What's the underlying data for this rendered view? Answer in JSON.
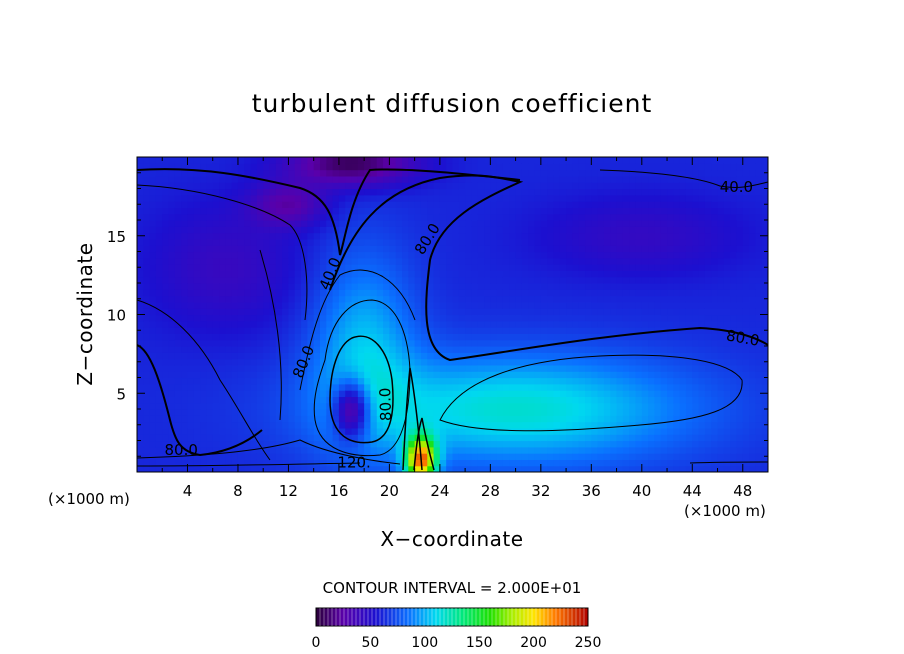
{
  "chart_data": {
    "type": "heatmap",
    "title": "turbulent diffusion coefficient",
    "xlabel": "X−coordinate",
    "ylabel": "Z−coordinate",
    "x_unit": "(×1000 m)",
    "y_unit": "(×1000 m)",
    "xlim": [
      0,
      50
    ],
    "ylim": [
      0,
      20
    ],
    "xticks": [
      4,
      8,
      12,
      16,
      20,
      24,
      28,
      32,
      36,
      40,
      44,
      48
    ],
    "yticks": [
      5,
      10,
      15
    ],
    "contour_interval_text": "CONTOUR INTERVAL = 2.000E+01",
    "contour_interval": 20,
    "contour_labels": [
      {
        "text": "40.0",
        "x": 47.5,
        "z": 18.1,
        "angle": 0
      },
      {
        "text": "80.0",
        "x": 23.0,
        "z": 14.8,
        "angle": -58
      },
      {
        "text": "40.0",
        "x": 15.3,
        "z": 12.6,
        "angle": -68
      },
      {
        "text": "80.0",
        "x": 48.0,
        "z": 8.5,
        "angle": 10
      },
      {
        "text": "80.0",
        "x": 13.2,
        "z": 7.0,
        "angle": -68
      },
      {
        "text": "80.0",
        "x": 19.7,
        "z": 4.3,
        "angle": -92
      },
      {
        "text": "80.0",
        "x": 3.5,
        "z": 1.4,
        "angle": 0
      },
      {
        "text": "120.",
        "x": 17.2,
        "z": 0.6,
        "angle": 0
      }
    ],
    "colorbar": {
      "min": 0,
      "max": 250,
      "ticks": [
        0,
        50,
        100,
        150,
        200,
        250
      ],
      "colormap": "rainbow-purple-red"
    },
    "approx_field": {
      "description_values": "kdiff values in field units; dark purple ~10 at top-center, blue ~40-60 in upper left/right, cyan/green ~80-120 in lower right, green-yellow-red near surface at x~22",
      "components": [
        {
          "kind": "base",
          "value": 62
        },
        {
          "kind": "blob",
          "x": 30,
          "z": 4,
          "sx": 14,
          "sz": 3.5,
          "amp": 55
        },
        {
          "kind": "blob",
          "x": 18,
          "z": 8,
          "sx": 4,
          "sz": 6,
          "amp": 40
        },
        {
          "kind": "blob",
          "x": 22.5,
          "z": 0.8,
          "sx": 1.2,
          "sz": 1.4,
          "amp": 150
        },
        {
          "kind": "blob",
          "x": 17,
          "z": 4,
          "sx": 1.4,
          "sz": 1.8,
          "amp": -75
        },
        {
          "kind": "blob",
          "x": 7,
          "z": 13,
          "sx": 6,
          "sz": 4,
          "amp": -20
        },
        {
          "kind": "blob",
          "x": 40,
          "z": 15,
          "sx": 8,
          "sz": 2.5,
          "amp": -18
        },
        {
          "kind": "blob",
          "x": 17,
          "z": 19.6,
          "sx": 5,
          "sz": 1.4,
          "amp": -55
        },
        {
          "kind": "blob",
          "x": 12,
          "z": 17,
          "sx": 3,
          "sz": 1.4,
          "amp": -35
        }
      ]
    }
  }
}
